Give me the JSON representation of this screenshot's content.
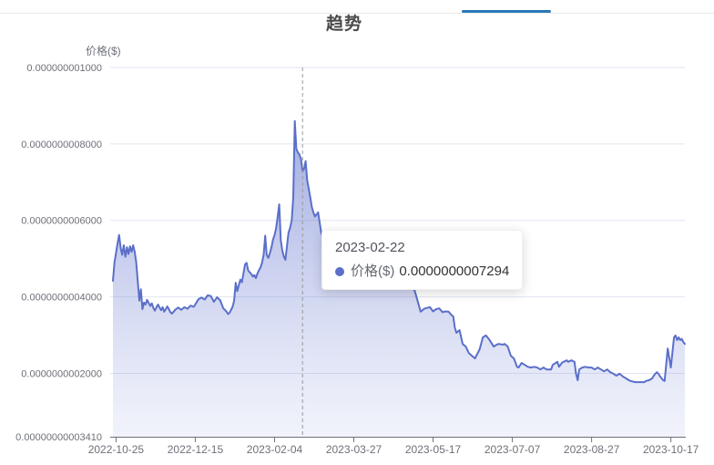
{
  "header": {
    "title": "趋势"
  },
  "tab_bar": {
    "active_indicator_color": "#2878b8"
  },
  "tooltip": {
    "date": "2023-02-22",
    "series_label": "价格($)",
    "value_text": "0.0000000007294",
    "value": 7.294e-10,
    "anchor_date": "2023-02-22"
  },
  "colors": {
    "line": "#5b6fc9",
    "area_top": "rgba(92,111,202,0.68)",
    "area_bottom": "rgba(150,162,225,0.13)",
    "gridline": "#E0E6F1",
    "axis": "#6E7079",
    "axis_label": "#6E7079",
    "pointer_line": "#999999",
    "tooltip_dot": "#5b6fc9"
  },
  "chart_data": {
    "type": "area",
    "title": "趋势",
    "y_axis_name": "价格($)",
    "series_name": "价格($)",
    "grid": true,
    "legend": "none",
    "ylim": [
      3.41e-11,
      1e-09
    ],
    "x_range": [
      "2022-10-23",
      "2023-10-26"
    ],
    "y_ticks": [
      {
        "label": "0.00000000003410",
        "value": 3.41e-11
      },
      {
        "label": "0.0000000002000",
        "value": 2e-10
      },
      {
        "label": "0.0000000004000",
        "value": 4e-10
      },
      {
        "label": "0.0000000006000",
        "value": 6e-10
      },
      {
        "label": "0.0000000008000",
        "value": 8e-10
      },
      {
        "label": "0.000000001000",
        "value": 1e-09
      }
    ],
    "x_ticks": [
      "2022-10-25",
      "2022-12-15",
      "2023-02-04",
      "2023-03-27",
      "2023-05-17",
      "2023-07-07",
      "2023-08-27",
      "2023-10-17"
    ],
    "points": [
      [
        "2022-10-23",
        4.42e-10
      ],
      [
        "2022-10-24",
        4.9e-10
      ],
      [
        "2022-10-25",
        5.15e-10
      ],
      [
        "2022-10-26",
        5.4e-10
      ],
      [
        "2022-10-27",
        5.62e-10
      ],
      [
        "2022-10-28",
        5.28e-10
      ],
      [
        "2022-10-29",
        5.1e-10
      ],
      [
        "2022-10-30",
        5.35e-10
      ],
      [
        "2022-10-31",
        5.05e-10
      ],
      [
        "2022-11-01",
        5.3e-10
      ],
      [
        "2022-11-02",
        5.12e-10
      ],
      [
        "2022-11-03",
        5.32e-10
      ],
      [
        "2022-11-04",
        5.18e-10
      ],
      [
        "2022-11-05",
        5.35e-10
      ],
      [
        "2022-11-06",
        5.18e-10
      ],
      [
        "2022-11-07",
        4.9e-10
      ],
      [
        "2022-11-08",
        4.4e-10
      ],
      [
        "2022-11-09",
        3.9e-10
      ],
      [
        "2022-11-10",
        4.2e-10
      ],
      [
        "2022-11-11",
        3.68e-10
      ],
      [
        "2022-11-12",
        3.85e-10
      ],
      [
        "2022-11-13",
        3.8e-10
      ],
      [
        "2022-11-14",
        3.92e-10
      ],
      [
        "2022-11-15",
        3.84e-10
      ],
      [
        "2022-11-16",
        3.76e-10
      ],
      [
        "2022-11-17",
        3.83e-10
      ],
      [
        "2022-11-18",
        3.71e-10
      ],
      [
        "2022-11-19",
        3.64e-10
      ],
      [
        "2022-11-20",
        3.73e-10
      ],
      [
        "2022-11-21",
        3.8e-10
      ],
      [
        "2022-11-22",
        3.72e-10
      ],
      [
        "2022-11-23",
        3.65e-10
      ],
      [
        "2022-11-24",
        3.73e-10
      ],
      [
        "2022-11-25",
        3.61e-10
      ],
      [
        "2022-11-26",
        3.68e-10
      ],
      [
        "2022-11-27",
        3.75e-10
      ],
      [
        "2022-11-28",
        3.68e-10
      ],
      [
        "2022-11-29",
        3.6e-10
      ],
      [
        "2022-11-30",
        3.56e-10
      ],
      [
        "2022-12-02",
        3.66e-10
      ],
      [
        "2022-12-04",
        3.72e-10
      ],
      [
        "2022-12-06",
        3.66e-10
      ],
      [
        "2022-12-08",
        3.73e-10
      ],
      [
        "2022-12-10",
        3.69e-10
      ],
      [
        "2022-12-12",
        3.77e-10
      ],
      [
        "2022-12-14",
        3.74e-10
      ],
      [
        "2022-12-15",
        3.8e-10
      ],
      [
        "2022-12-17",
        3.94e-10
      ],
      [
        "2022-12-19",
        3.98e-10
      ],
      [
        "2022-12-21",
        3.93e-10
      ],
      [
        "2022-12-23",
        4.04e-10
      ],
      [
        "2022-12-25",
        4.02e-10
      ],
      [
        "2022-12-27",
        3.87e-10
      ],
      [
        "2022-12-29",
        3.99e-10
      ],
      [
        "2022-12-31",
        3.91e-10
      ],
      [
        "2023-01-02",
        3.7e-10
      ],
      [
        "2023-01-04",
        3.62e-10
      ],
      [
        "2023-01-05",
        3.55e-10
      ],
      [
        "2023-01-06",
        3.58e-10
      ],
      [
        "2023-01-07",
        3.66e-10
      ],
      [
        "2023-01-08",
        3.74e-10
      ],
      [
        "2023-01-09",
        3.9e-10
      ],
      [
        "2023-01-10",
        4.37e-10
      ],
      [
        "2023-01-11",
        4.15e-10
      ],
      [
        "2023-01-12",
        4.3e-10
      ],
      [
        "2023-01-13",
        4.45e-10
      ],
      [
        "2023-01-14",
        4.38e-10
      ],
      [
        "2023-01-15",
        4.61e-10
      ],
      [
        "2023-01-16",
        4.85e-10
      ],
      [
        "2023-01-17",
        4.89e-10
      ],
      [
        "2023-01-18",
        4.69e-10
      ],
      [
        "2023-01-19",
        4.64e-10
      ],
      [
        "2023-01-20",
        4.6e-10
      ],
      [
        "2023-01-21",
        4.53e-10
      ],
      [
        "2023-01-22",
        4.57e-10
      ],
      [
        "2023-01-23",
        4.49e-10
      ],
      [
        "2023-01-24",
        4.61e-10
      ],
      [
        "2023-01-25",
        4.7e-10
      ],
      [
        "2023-01-26",
        4.77e-10
      ],
      [
        "2023-01-27",
        4.9e-10
      ],
      [
        "2023-01-28",
        5.1e-10
      ],
      [
        "2023-01-29",
        5.6e-10
      ],
      [
        "2023-01-30",
        5.09e-10
      ],
      [
        "2023-01-31",
        5.02e-10
      ],
      [
        "2023-02-01",
        5.15e-10
      ],
      [
        "2023-02-02",
        5.3e-10
      ],
      [
        "2023-02-03",
        5.5e-10
      ],
      [
        "2023-02-04",
        5.62e-10
      ],
      [
        "2023-02-05",
        5.8e-10
      ],
      [
        "2023-02-06",
        6.1e-10
      ],
      [
        "2023-02-07",
        6.42e-10
      ],
      [
        "2023-02-08",
        5.48e-10
      ],
      [
        "2023-02-09",
        5.21e-10
      ],
      [
        "2023-02-10",
        5.05e-10
      ],
      [
        "2023-02-11",
        4.97e-10
      ],
      [
        "2023-02-12",
        5.33e-10
      ],
      [
        "2023-02-13",
        5.68e-10
      ],
      [
        "2023-02-14",
        5.8e-10
      ],
      [
        "2023-02-15",
        6e-10
      ],
      [
        "2023-02-16",
        6.6e-10
      ],
      [
        "2023-02-17",
        8.6e-10
      ],
      [
        "2023-02-18",
        7.87e-10
      ],
      [
        "2023-02-19",
        7.78e-10
      ],
      [
        "2023-02-20",
        7.72e-10
      ],
      [
        "2023-02-21",
        7.6e-10
      ],
      [
        "2023-02-22",
        7.294e-10
      ],
      [
        "2023-02-23",
        7.35e-10
      ],
      [
        "2023-02-24",
        7.55e-10
      ],
      [
        "2023-02-25",
        7.05e-10
      ],
      [
        "2023-02-26",
        6.83e-10
      ],
      [
        "2023-02-27",
        6.6e-10
      ],
      [
        "2023-02-28",
        6.35e-10
      ],
      [
        "2023-03-01",
        6.21e-10
      ],
      [
        "2023-03-02",
        6.1e-10
      ],
      [
        "2023-03-04",
        6.21e-10
      ],
      [
        "2023-03-06",
        5.68e-10
      ],
      [
        "2023-03-08",
        5.45e-10
      ],
      [
        "2023-03-10",
        5.25e-10
      ],
      [
        "2023-03-12",
        5.1e-10
      ],
      [
        "2023-03-14",
        4.95e-10
      ],
      [
        "2023-03-16",
        4.82e-10
      ],
      [
        "2023-03-18",
        4.92e-10
      ],
      [
        "2023-03-20",
        4.7e-10
      ],
      [
        "2023-03-22",
        4.65e-10
      ],
      [
        "2023-03-24",
        4.75e-10
      ],
      [
        "2023-03-26",
        4.55e-10
      ],
      [
        "2023-03-28",
        4.62e-10
      ],
      [
        "2023-03-30",
        4.48e-10
      ],
      [
        "2023-04-01",
        4.55e-10
      ],
      [
        "2023-04-03",
        4.42e-10
      ],
      [
        "2023-04-05",
        4.5e-10
      ],
      [
        "2023-04-07",
        4.38e-10
      ],
      [
        "2023-04-09",
        4.45e-10
      ],
      [
        "2023-04-11",
        4.35e-10
      ],
      [
        "2023-04-13",
        4.42e-10
      ],
      [
        "2023-04-15",
        4.32e-10
      ],
      [
        "2023-04-17",
        4.3e-10
      ],
      [
        "2023-04-19",
        4.27e-10
      ],
      [
        "2023-04-20",
        4.25e-10
      ],
      [
        "2023-04-22",
        4.28e-10
      ],
      [
        "2023-04-24",
        4.3e-10
      ],
      [
        "2023-04-26",
        4.22e-10
      ],
      [
        "2023-04-28",
        4.21e-10
      ],
      [
        "2023-04-30",
        4.25e-10
      ],
      [
        "2023-05-02",
        4.3e-10
      ],
      [
        "2023-05-04",
        4.2e-10
      ],
      [
        "2023-05-05",
        4.18e-10
      ],
      [
        "2023-05-07",
        3.9e-10
      ],
      [
        "2023-05-09",
        3.61e-10
      ],
      [
        "2023-05-11",
        3.68e-10
      ],
      [
        "2023-05-12",
        3.7e-10
      ],
      [
        "2023-05-14",
        3.72e-10
      ],
      [
        "2023-05-15",
        3.73e-10
      ],
      [
        "2023-05-17",
        3.62e-10
      ],
      [
        "2023-05-19",
        3.68e-10
      ],
      [
        "2023-05-21",
        3.7e-10
      ],
      [
        "2023-05-23",
        3.6e-10
      ],
      [
        "2023-05-25",
        3.62e-10
      ],
      [
        "2023-05-27",
        3.61e-10
      ],
      [
        "2023-05-29",
        3.52e-10
      ],
      [
        "2023-05-30",
        3.49e-10
      ],
      [
        "2023-05-31",
        3.2e-10
      ],
      [
        "2023-06-01",
        3.06e-10
      ],
      [
        "2023-06-03",
        3.13e-10
      ],
      [
        "2023-06-05",
        2.77e-10
      ],
      [
        "2023-06-07",
        2.7e-10
      ],
      [
        "2023-06-09",
        2.53e-10
      ],
      [
        "2023-06-11",
        2.46e-10
      ],
      [
        "2023-06-13",
        2.39e-10
      ],
      [
        "2023-06-16",
        2.63e-10
      ],
      [
        "2023-06-18",
        2.94e-10
      ],
      [
        "2023-06-20",
        2.99e-10
      ],
      [
        "2023-06-22",
        2.89e-10
      ],
      [
        "2023-06-25",
        2.7e-10
      ],
      [
        "2023-06-27",
        2.75e-10
      ],
      [
        "2023-06-28",
        2.77e-10
      ],
      [
        "2023-07-01",
        2.75e-10
      ],
      [
        "2023-07-02",
        2.77e-10
      ],
      [
        "2023-07-04",
        2.7e-10
      ],
      [
        "2023-07-06",
        2.46e-10
      ],
      [
        "2023-07-08",
        2.39e-10
      ],
      [
        "2023-07-10",
        2.17e-10
      ],
      [
        "2023-07-11",
        2.15e-10
      ],
      [
        "2023-07-13",
        2.27e-10
      ],
      [
        "2023-07-15",
        2.22e-10
      ],
      [
        "2023-07-17",
        2.17e-10
      ],
      [
        "2023-07-19",
        2.15e-10
      ],
      [
        "2023-07-21",
        2.17e-10
      ],
      [
        "2023-07-23",
        2.15e-10
      ],
      [
        "2023-07-25",
        2.1e-10
      ],
      [
        "2023-07-27",
        2.15e-10
      ],
      [
        "2023-07-29",
        2.1e-10
      ],
      [
        "2023-08-01",
        2.1e-10
      ],
      [
        "2023-08-02",
        2.22e-10
      ],
      [
        "2023-08-05",
        2.3e-10
      ],
      [
        "2023-08-06",
        2.17e-10
      ],
      [
        "2023-08-08",
        2.28e-10
      ],
      [
        "2023-08-11",
        2.34e-10
      ],
      [
        "2023-08-12",
        2.3e-10
      ],
      [
        "2023-08-14",
        2.34e-10
      ],
      [
        "2023-08-16",
        2.3e-10
      ],
      [
        "2023-08-17",
        1.99e-10
      ],
      [
        "2023-08-18",
        1.82e-10
      ],
      [
        "2023-08-19",
        2.1e-10
      ],
      [
        "2023-08-21",
        2.15e-10
      ],
      [
        "2023-08-23",
        2.17e-10
      ],
      [
        "2023-08-25",
        2.15e-10
      ],
      [
        "2023-08-27",
        2.15e-10
      ],
      [
        "2023-08-29",
        2.1e-10
      ],
      [
        "2023-08-31",
        2.15e-10
      ],
      [
        "2023-09-02",
        2.1e-10
      ],
      [
        "2023-09-04",
        2.05e-10
      ],
      [
        "2023-09-06",
        2.1e-10
      ],
      [
        "2023-09-08",
        2.03e-10
      ],
      [
        "2023-09-10",
        1.99e-10
      ],
      [
        "2023-09-12",
        1.94e-10
      ],
      [
        "2023-09-14",
        1.99e-10
      ],
      [
        "2023-09-16",
        1.92e-10
      ],
      [
        "2023-09-18",
        1.87e-10
      ],
      [
        "2023-09-20",
        1.82e-10
      ],
      [
        "2023-09-21",
        1.8e-10
      ],
      [
        "2023-09-24",
        1.77e-10
      ],
      [
        "2023-09-27",
        1.77e-10
      ],
      [
        "2023-09-30",
        1.77e-10
      ],
      [
        "2023-10-01",
        1.8e-10
      ],
      [
        "2023-10-03",
        1.82e-10
      ],
      [
        "2023-10-05",
        1.87e-10
      ],
      [
        "2023-10-06",
        1.94e-10
      ],
      [
        "2023-10-07",
        1.99e-10
      ],
      [
        "2023-10-08",
        2.03e-10
      ],
      [
        "2023-10-09",
        1.99e-10
      ],
      [
        "2023-10-10",
        1.92e-10
      ],
      [
        "2023-10-11",
        1.87e-10
      ],
      [
        "2023-10-12",
        1.82e-10
      ],
      [
        "2023-10-13",
        1.8e-10
      ],
      [
        "2023-10-15",
        2.65e-10
      ],
      [
        "2023-10-17",
        2.15e-10
      ],
      [
        "2023-10-19",
        2.94e-10
      ],
      [
        "2023-10-20",
        2.99e-10
      ],
      [
        "2023-10-21",
        2.87e-10
      ],
      [
        "2023-10-22",
        2.94e-10
      ],
      [
        "2023-10-23",
        2.87e-10
      ],
      [
        "2023-10-24",
        2.9e-10
      ],
      [
        "2023-10-25",
        2.82e-10
      ],
      [
        "2023-10-26",
        2.77e-10
      ]
    ]
  }
}
